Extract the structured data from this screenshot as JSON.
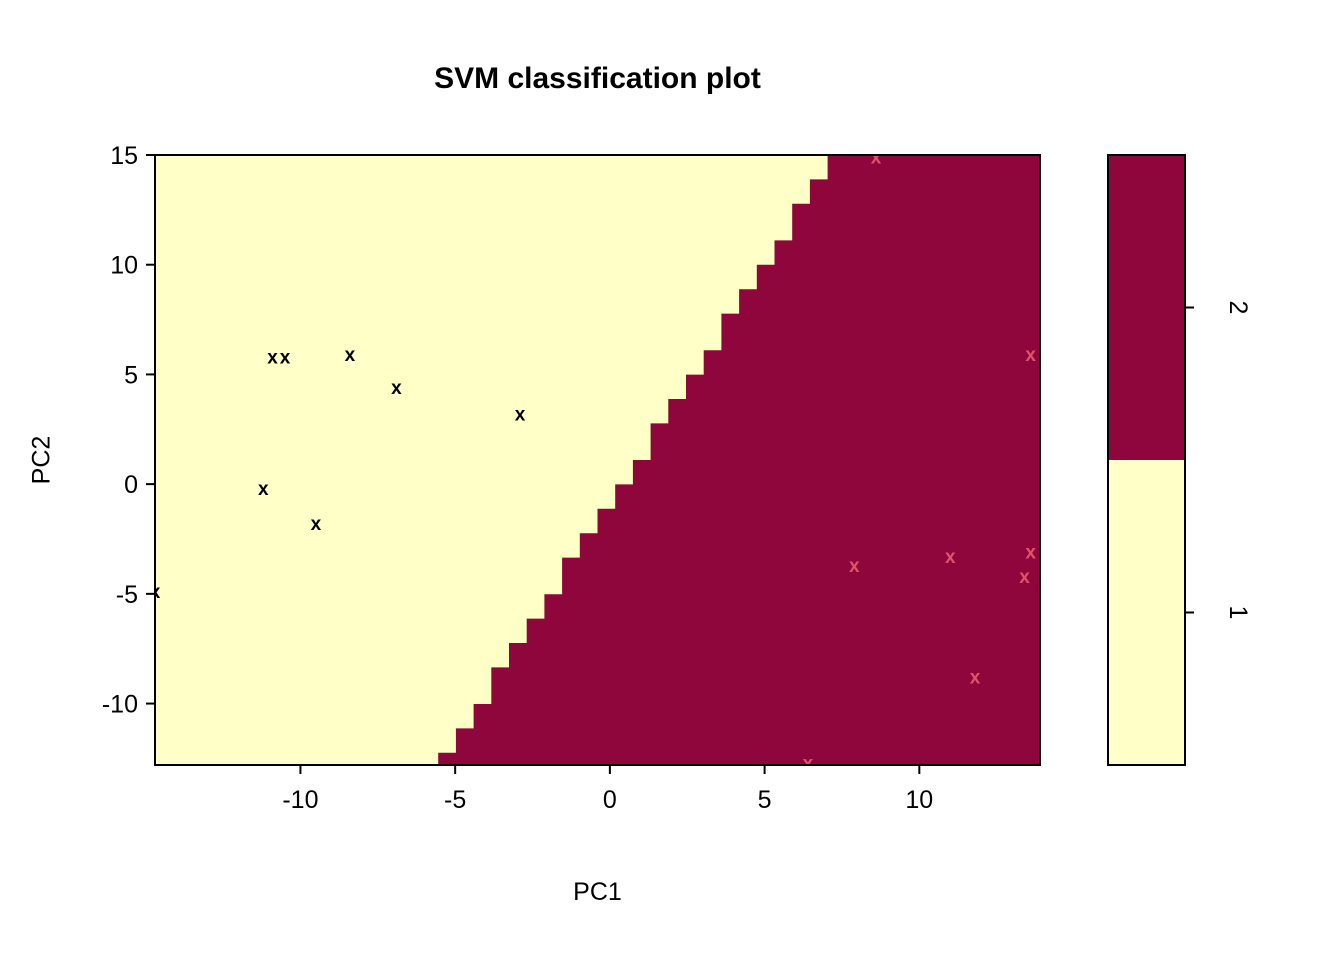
{
  "chart_data": {
    "type": "svm-classification-filled-regions",
    "title": "SVM classification plot",
    "xlabel": "PC1",
    "ylabel": "PC2",
    "xlim": [
      -14.7,
      13.9
    ],
    "ylim": [
      -12.8,
      15.0
    ],
    "x_ticks": [
      "-10",
      "-5",
      "0",
      "5",
      "10"
    ],
    "y_ticks": [
      "-10",
      "-5",
      "0",
      "5",
      "10",
      "15"
    ],
    "grid_resolution": 50,
    "decision_boundary": {
      "type": "linear-stairstep",
      "x_at_y0": 0.4,
      "dx_per_dy": 0.46
    },
    "regions": [
      {
        "class": "1",
        "side": "left",
        "color": "#FFFFC8"
      },
      {
        "class": "2",
        "side": "right",
        "color": "#8E063B"
      }
    ],
    "marker": "x",
    "series": [
      {
        "name": "class-1-points",
        "color": "#000000",
        "points": [
          [
            -10.9,
            5.8
          ],
          [
            -10.5,
            5.8
          ],
          [
            -8.4,
            5.9
          ],
          [
            -6.9,
            4.4
          ],
          [
            -2.9,
            3.2
          ],
          [
            -11.2,
            -0.2
          ],
          [
            -9.5,
            -1.8
          ],
          [
            -14.7,
            -4.9
          ]
        ]
      },
      {
        "name": "class-2-points",
        "color": "#DF536B",
        "points": [
          [
            8.6,
            14.9
          ],
          [
            13.6,
            5.9
          ],
          [
            7.9,
            -3.7
          ],
          [
            11.0,
            -3.3
          ],
          [
            13.6,
            -3.1
          ],
          [
            13.4,
            -4.2
          ],
          [
            11.8,
            -8.8
          ],
          [
            6.4,
            -12.7
          ]
        ]
      }
    ],
    "legend": {
      "position": "right",
      "labels": [
        "2",
        "1"
      ],
      "colors": [
        "#8E063B",
        "#FFFFC8"
      ]
    }
  }
}
